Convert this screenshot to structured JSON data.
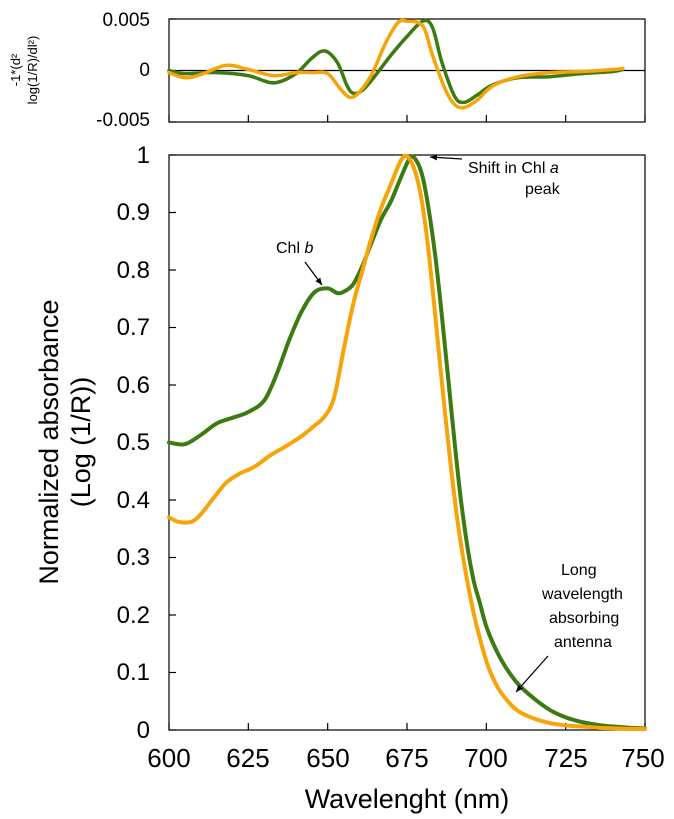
{
  "colors": {
    "dark_green": "#3c7a12",
    "orange": "#f7a30a",
    "axis": "#000000"
  },
  "chart_data": [
    {
      "type": "line",
      "panel": "second-derivative",
      "ylabel_line1": "-1*(d²",
      "ylabel_line2": "log(1/R)/dl²)",
      "xlim": [
        600,
        750
      ],
      "ylim": [
        -0.005,
        0.005
      ],
      "y_ticks": [
        0.005,
        0,
        -0.005
      ],
      "y_tick_labels": [
        "0.005",
        "0",
        "-0.005"
      ],
      "x_ticks": [
        600,
        625,
        650,
        675,
        700,
        725,
        750
      ],
      "zero_line": true,
      "series": [
        {
          "color": "#3c7a12",
          "x": [
            600,
            605,
            615,
            625,
            633,
            640,
            645,
            649,
            653,
            656,
            658,
            661,
            665,
            670,
            675,
            680,
            683,
            686,
            690,
            693,
            697,
            702,
            710,
            720,
            730,
            740,
            743
          ],
          "y": [
            0.0,
            -0.0003,
            -0.0002,
            -0.0005,
            -0.0012,
            -0.0003,
            0.0012,
            0.0019,
            0.0008,
            -0.0014,
            -0.0022,
            -0.0019,
            -0.0005,
            0.0015,
            0.0033,
            0.0048,
            0.0042,
            0.0008,
            -0.0025,
            -0.0031,
            -0.0024,
            -0.0014,
            -0.0007,
            -0.0006,
            -0.0003,
            -0.0001,
            0.0001
          ]
        },
        {
          "color": "#f7a30a",
          "x": [
            600,
            605,
            610,
            618,
            625,
            633,
            640,
            645,
            650,
            654,
            657,
            660,
            664,
            668,
            672,
            675,
            680,
            683,
            687,
            690,
            693,
            697,
            702,
            710,
            720,
            730,
            740,
            743
          ],
          "y": [
            -0.0002,
            -0.0007,
            -0.0004,
            0.0005,
            0.0001,
            -0.0005,
            -0.0002,
            -0.0002,
            -0.0003,
            -0.0018,
            -0.0026,
            -0.0021,
            -0.0003,
            0.0025,
            0.0046,
            0.0048,
            0.0043,
            0.0015,
            -0.0018,
            -0.0033,
            -0.0036,
            -0.0029,
            -0.0015,
            -0.0006,
            -0.0002,
            -0.0001,
            0.0001,
            0.0002
          ]
        }
      ]
    },
    {
      "type": "line",
      "panel": "absorbance",
      "xlabel": "Wavelenght (nm)",
      "ylabel_line1": "Normalized absorbance",
      "ylabel_line2": "(Log (1/R))",
      "xlim": [
        600,
        750
      ],
      "ylim": [
        0,
        1
      ],
      "x_ticks": [
        600,
        625,
        650,
        675,
        700,
        725,
        750
      ],
      "x_tick_labels": [
        "600",
        "625",
        "650",
        "675",
        "700",
        "725",
        "750"
      ],
      "y_ticks": [
        0,
        0.1,
        0.2,
        0.3,
        0.4,
        0.5,
        0.6,
        0.7,
        0.8,
        0.9,
        1
      ],
      "y_tick_labels": [
        "0",
        "0.1",
        "0.2",
        "0.3",
        "0.4",
        "0.5",
        "0.6",
        "0.7",
        "0.8",
        "0.9",
        "1"
      ],
      "series": [
        {
          "color": "#3c7a12",
          "x": [
            600,
            605,
            610,
            615,
            620,
            625,
            630,
            634,
            638,
            642,
            646,
            650,
            653,
            655,
            658,
            661,
            664,
            667,
            670,
            673,
            676,
            678,
            680,
            682,
            684,
            686,
            688,
            690,
            692,
            694,
            696,
            698,
            700,
            703,
            706,
            710,
            715,
            720,
            725,
            730,
            735,
            740,
            745,
            750
          ],
          "y": [
            0.5,
            0.497,
            0.513,
            0.533,
            0.543,
            0.553,
            0.573,
            0.62,
            0.68,
            0.73,
            0.762,
            0.768,
            0.76,
            0.762,
            0.775,
            0.808,
            0.85,
            0.89,
            0.92,
            0.96,
            0.995,
            0.99,
            0.96,
            0.9,
            0.82,
            0.72,
            0.61,
            0.5,
            0.4,
            0.32,
            0.26,
            0.22,
            0.18,
            0.14,
            0.11,
            0.08,
            0.055,
            0.035,
            0.022,
            0.014,
            0.009,
            0.006,
            0.004,
            0.003
          ]
        },
        {
          "color": "#f7a30a",
          "x": [
            600,
            603,
            607,
            610,
            614,
            618,
            622,
            627,
            632,
            637,
            642,
            646,
            649,
            652,
            655,
            658,
            661,
            664,
            667,
            670,
            673,
            675,
            677,
            679,
            681,
            683,
            685,
            687,
            689,
            691,
            693,
            695,
            697,
            700,
            703,
            706,
            710,
            715,
            720,
            725,
            730,
            735,
            740,
            745,
            750
          ],
          "y": [
            0.37,
            0.362,
            0.362,
            0.375,
            0.403,
            0.43,
            0.445,
            0.458,
            0.478,
            0.494,
            0.512,
            0.53,
            0.545,
            0.578,
            0.66,
            0.74,
            0.8,
            0.86,
            0.91,
            0.95,
            0.99,
            0.998,
            0.98,
            0.94,
            0.87,
            0.77,
            0.66,
            0.55,
            0.45,
            0.36,
            0.29,
            0.23,
            0.18,
            0.12,
            0.08,
            0.055,
            0.033,
            0.02,
            0.012,
            0.008,
            0.006,
            0.004,
            0.003,
            0.002,
            0.002
          ]
        }
      ],
      "annotations": [
        {
          "name": "chl-b",
          "line1_prefix": "Chl ",
          "line1_italic": "b",
          "points_to": [
            650,
            0.768
          ]
        },
        {
          "name": "chl-a-shift",
          "line1_prefix": "Shift in Chl ",
          "line1_italic": "a",
          "line2": "peak",
          "points_to": [
            676,
            0.995
          ]
        },
        {
          "name": "lwaa",
          "lines": [
            "Long",
            "wavelength",
            "absorbing",
            "antenna"
          ],
          "points_to": [
            705,
            0.07
          ]
        }
      ]
    }
  ]
}
